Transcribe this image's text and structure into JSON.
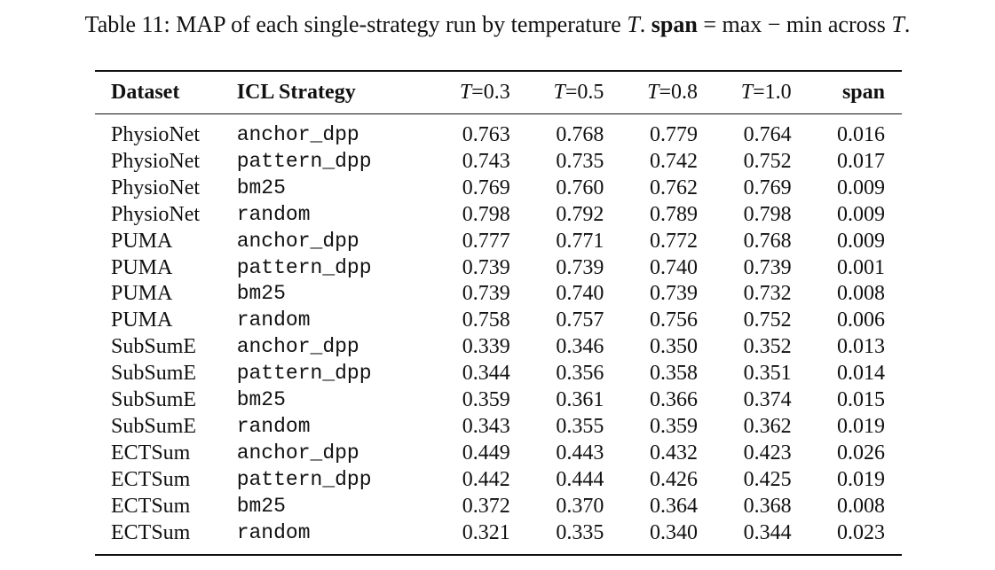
{
  "caption": {
    "prefix": "Table 11: MAP of each single-strategy run by temperature ",
    "t_symbol": "T",
    "middle": ". ",
    "span_word": "span",
    "equals": " = max − min across ",
    "end": "."
  },
  "table": {
    "headers": {
      "dataset": "Dataset",
      "strategy": "ICL Strategy",
      "t_symbol": "T",
      "temps": [
        "=0.3",
        "=0.5",
        "=0.8",
        "=1.0"
      ],
      "span": "span"
    },
    "rows": [
      {
        "dataset": "PhysioNet",
        "strategy": "anchor_dpp",
        "t03": "0.763",
        "t05": "0.768",
        "t08": "0.779",
        "t10": "0.764",
        "span": "0.016"
      },
      {
        "dataset": "PhysioNet",
        "strategy": "pattern_dpp",
        "t03": "0.743",
        "t05": "0.735",
        "t08": "0.742",
        "t10": "0.752",
        "span": "0.017"
      },
      {
        "dataset": "PhysioNet",
        "strategy": "bm25",
        "t03": "0.769",
        "t05": "0.760",
        "t08": "0.762",
        "t10": "0.769",
        "span": "0.009"
      },
      {
        "dataset": "PhysioNet",
        "strategy": "random",
        "t03": "0.798",
        "t05": "0.792",
        "t08": "0.789",
        "t10": "0.798",
        "span": "0.009"
      },
      {
        "dataset": "PUMA",
        "strategy": "anchor_dpp",
        "t03": "0.777",
        "t05": "0.771",
        "t08": "0.772",
        "t10": "0.768",
        "span": "0.009"
      },
      {
        "dataset": "PUMA",
        "strategy": "pattern_dpp",
        "t03": "0.739",
        "t05": "0.739",
        "t08": "0.740",
        "t10": "0.739",
        "span": "0.001"
      },
      {
        "dataset": "PUMA",
        "strategy": "bm25",
        "t03": "0.739",
        "t05": "0.740",
        "t08": "0.739",
        "t10": "0.732",
        "span": "0.008"
      },
      {
        "dataset": "PUMA",
        "strategy": "random",
        "t03": "0.758",
        "t05": "0.757",
        "t08": "0.756",
        "t10": "0.752",
        "span": "0.006"
      },
      {
        "dataset": "SubSumE",
        "strategy": "anchor_dpp",
        "t03": "0.339",
        "t05": "0.346",
        "t08": "0.350",
        "t10": "0.352",
        "span": "0.013"
      },
      {
        "dataset": "SubSumE",
        "strategy": "pattern_dpp",
        "t03": "0.344",
        "t05": "0.356",
        "t08": "0.358",
        "t10": "0.351",
        "span": "0.014"
      },
      {
        "dataset": "SubSumE",
        "strategy": "bm25",
        "t03": "0.359",
        "t05": "0.361",
        "t08": "0.366",
        "t10": "0.374",
        "span": "0.015"
      },
      {
        "dataset": "SubSumE",
        "strategy": "random",
        "t03": "0.343",
        "t05": "0.355",
        "t08": "0.359",
        "t10": "0.362",
        "span": "0.019"
      },
      {
        "dataset": "ECTSum",
        "strategy": "anchor_dpp",
        "t03": "0.449",
        "t05": "0.443",
        "t08": "0.432",
        "t10": "0.423",
        "span": "0.026"
      },
      {
        "dataset": "ECTSum",
        "strategy": "pattern_dpp",
        "t03": "0.442",
        "t05": "0.444",
        "t08": "0.426",
        "t10": "0.425",
        "span": "0.019"
      },
      {
        "dataset": "ECTSum",
        "strategy": "bm25",
        "t03": "0.372",
        "t05": "0.370",
        "t08": "0.364",
        "t10": "0.368",
        "span": "0.008"
      },
      {
        "dataset": "ECTSum",
        "strategy": "random",
        "t03": "0.321",
        "t05": "0.335",
        "t08": "0.340",
        "t10": "0.344",
        "span": "0.023"
      }
    ]
  }
}
